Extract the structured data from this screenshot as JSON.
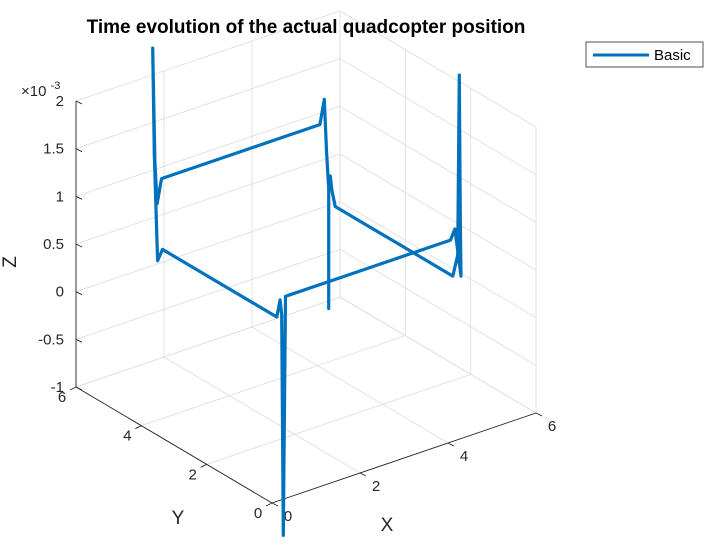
{
  "chart_data": {
    "type": "line",
    "projection": "3d",
    "title": "Time evolution of the actual quadcopter position",
    "xlabel": "X",
    "ylabel": "Y",
    "zlabel": "Z",
    "xlim": [
      0,
      6
    ],
    "ylim": [
      0,
      6
    ],
    "zlim": [
      -0.001,
      0.002
    ],
    "x_ticks": [
      0,
      2,
      4,
      6
    ],
    "y_ticks": [
      0,
      2,
      4,
      6
    ],
    "x_tick_labels": [
      "0",
      "2",
      "4",
      "6"
    ],
    "y_tick_labels": [
      "0",
      "2",
      "4",
      "6"
    ],
    "z_ticks": [
      -0.001,
      -0.0005,
      0,
      0.0005,
      0.001,
      0.0015,
      0.002
    ],
    "z_tick_labels": [
      "-1",
      "-0.5",
      "0",
      "0.5",
      "1",
      "1.5",
      "2"
    ],
    "z_exponent_base": "×10",
    "z_exponent_power": "-3",
    "grid": true,
    "legend_position": "top-right",
    "series": [
      {
        "name": "Basic",
        "color": "#0072BD",
        "points": [
          [
            5.0,
            5.0,
            -0.00076
          ],
          [
            5.0,
            5.0,
            0.0005
          ],
          [
            5.0,
            4.95,
            0.00064
          ],
          [
            5.0,
            4.9,
            0.0005
          ],
          [
            5.0,
            4.8,
            0.00035
          ],
          [
            5.0,
            4.6,
            0.00035
          ],
          [
            5.0,
            3.0,
            0.00035
          ],
          [
            5.0,
            1.2,
            0.00035
          ],
          [
            5.0,
            1.05,
            0.0006
          ],
          [
            5.0,
            1.0,
            0.0025
          ],
          [
            5.0,
            0.97,
            0.001
          ],
          [
            5.0,
            0.95,
            0.0004
          ],
          [
            4.9,
            1.0,
            0.0009
          ],
          [
            4.8,
            1.0,
            0.0008
          ],
          [
            3.0,
            1.0,
            0.0008
          ],
          [
            1.05,
            1.0,
            0.0008
          ],
          [
            1.0,
            1.0,
            -0.0017
          ],
          [
            1.0,
            1.05,
            0.0006
          ],
          [
            1.0,
            1.1,
            0.00075
          ],
          [
            1.0,
            1.2,
            0.00055
          ],
          [
            1.0,
            3.0,
            0.00055
          ],
          [
            1.0,
            4.7,
            0.00055
          ],
          [
            1.0,
            4.85,
            0.0004
          ],
          [
            1.0,
            4.95,
            0.0015
          ],
          [
            1.0,
            5.0,
            0.0026
          ],
          [
            1.05,
            5.0,
            0.0014
          ],
          [
            1.1,
            5.0,
            0.00095
          ],
          [
            1.2,
            5.0,
            0.0012
          ],
          [
            3.0,
            5.0,
            0.0012
          ],
          [
            4.8,
            5.0,
            0.0012
          ],
          [
            4.9,
            5.0,
            0.00145
          ],
          [
            4.95,
            5.0,
            0.0009
          ],
          [
            5.0,
            5.0,
            0.0005
          ]
        ]
      }
    ]
  }
}
